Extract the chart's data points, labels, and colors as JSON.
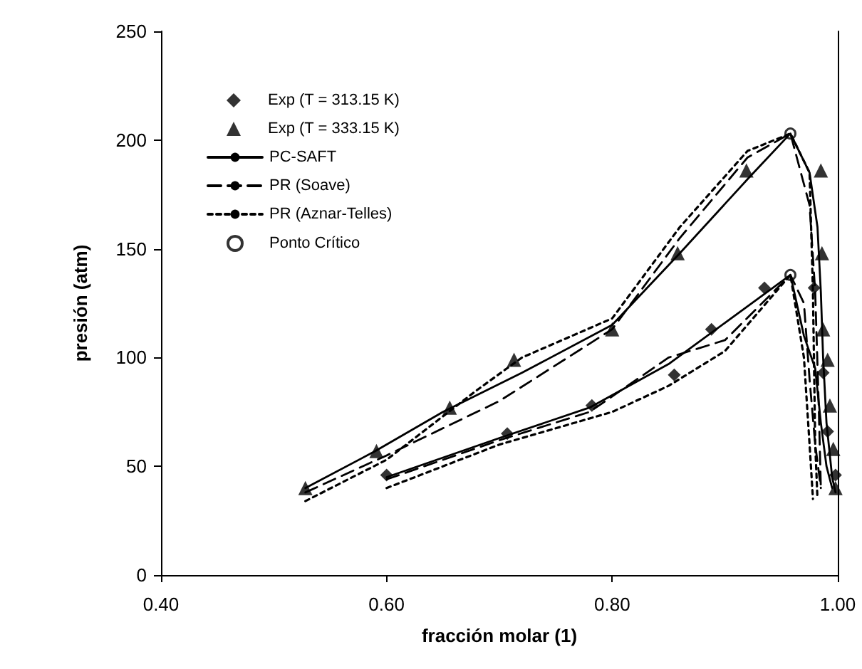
{
  "chart_data": {
    "type": "scatter",
    "xlabel": "fracción molar (1)",
    "ylabel": "presión (atm)",
    "xlim": [
      0.4,
      1.0
    ],
    "xticks": [
      {
        "value": 0.4,
        "label": "0.40"
      },
      {
        "value": 0.6,
        "label": "0.60"
      },
      {
        "value": 0.8,
        "label": "0.80"
      },
      {
        "value": 1.0,
        "label": "1.00"
      }
    ],
    "ylim": [
      0,
      250
    ],
    "yticks": [
      0,
      50,
      100,
      150,
      200,
      250
    ],
    "grid": false,
    "legend": "top left",
    "series": [
      {
        "name": "Exp (T = 313.15 K)",
        "marker": "diamond",
        "color": "#000000",
        "x": [
          0.6,
          0.707,
          0.782,
          0.855,
          0.888,
          0.935,
          0.979,
          0.987,
          0.991,
          0.998
        ],
        "values": [
          46,
          65,
          78,
          92,
          113,
          132,
          132,
          93,
          66,
          46
        ]
      },
      {
        "name": "Exp (T = 333.15 K)",
        "marker": "triangle",
        "color": "#000000",
        "x": [
          0.528,
          0.591,
          0.656,
          0.713,
          0.8,
          0.858,
          0.919,
          0.985,
          0.986,
          0.987,
          0.991,
          0.993,
          0.996,
          0.998
        ],
        "values": [
          40,
          57,
          77,
          99,
          113,
          148,
          186,
          186,
          148,
          113,
          99,
          78,
          58,
          40
        ]
      },
      {
        "name": "PC-SAFT",
        "type": "line",
        "marker": "none",
        "line_style": "solid",
        "color": "#000000",
        "x": [
          0.528,
          0.59,
          0.65,
          0.72,
          0.8,
          0.86,
          0.92,
          0.958,
          0.975,
          0.982,
          0.985,
          0.987,
          0.99,
          0.995,
          0.998,
          null,
          0.6,
          0.7,
          0.78,
          0.85,
          0.9,
          0.958,
          0.97,
          0.98,
          0.985,
          0.99,
          0.995
        ],
        "values": [
          40,
          57,
          75,
          93,
          115,
          148,
          182,
          203,
          185,
          160,
          130,
          100,
          70,
          45,
          38,
          null,
          45,
          63,
          77,
          97,
          116,
          138,
          110,
          95,
          70,
          50,
          40
        ]
      },
      {
        "name": "PR (Soave)",
        "type": "line",
        "marker": "none",
        "line_style": "dashed",
        "color": "#000000",
        "x": [
          0.528,
          0.6,
          0.7,
          0.8,
          0.86,
          0.92,
          0.958,
          0.975,
          0.98,
          0.983,
          0.985,
          null,
          0.6,
          0.7,
          0.78,
          0.85,
          0.9,
          0.958,
          0.97,
          0.975,
          0.98,
          0.985
        ],
        "values": [
          38,
          55,
          80,
          113,
          155,
          192,
          203,
          170,
          130,
          80,
          40,
          null,
          44,
          62,
          75,
          100,
          108,
          138,
          125,
          90,
          60,
          40
        ]
      },
      {
        "name": "PR (Aznar-Telles)",
        "type": "line",
        "marker": "none",
        "line_style": "dotted",
        "color": "#000000",
        "x": [
          0.528,
          0.6,
          0.68,
          0.72,
          0.8,
          0.86,
          0.92,
          0.958,
          0.975,
          0.978,
          0.98,
          0.982,
          null,
          0.6,
          0.7,
          0.8,
          0.85,
          0.9,
          0.958,
          0.97,
          0.975,
          0.978
        ],
        "values": [
          34,
          53,
          85,
          100,
          118,
          160,
          195,
          203,
          185,
          130,
          60,
          35,
          null,
          40,
          60,
          75,
          87,
          103,
          138,
          100,
          60,
          35
        ]
      },
      {
        "name": "Ponto Crítico",
        "marker": "circle",
        "color": "#000000",
        "x": [
          0.958,
          0.958
        ],
        "values": [
          203,
          138
        ]
      }
    ]
  }
}
